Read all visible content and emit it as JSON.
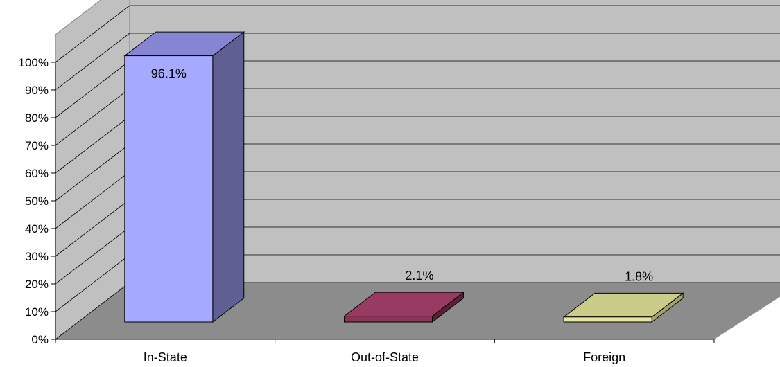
{
  "chart_data": {
    "type": "bar",
    "title": "",
    "xlabel": "",
    "ylabel": "",
    "categories": [
      "In-State",
      "Out-of-State",
      "Foreign"
    ],
    "values": [
      96.1,
      2.1,
      1.8
    ],
    "data_labels": [
      "96.1%",
      "2.1%",
      "1.8%"
    ],
    "ylim": [
      0,
      100
    ],
    "yticks": [
      0,
      10,
      20,
      30,
      40,
      50,
      60,
      70,
      80,
      90,
      100
    ],
    "ytick_labels": [
      "0%",
      "10%",
      "20%",
      "30%",
      "40%",
      "50%",
      "60%",
      "70%",
      "80%",
      "90%",
      "100%"
    ],
    "grid": true,
    "legend": "none",
    "style": "3d-column",
    "colors": {
      "bars": [
        "#a6aaff",
        "#8b3358",
        "#e5e5a0"
      ],
      "bar_sides": [
        "#5f5f94",
        "#5a2038",
        "#a3a36c"
      ],
      "bar_tops": [
        "#8585d4",
        "#993a62",
        "#cccc8a"
      ],
      "back_wall": "#c0c0c0",
      "side_wall": "#c0c0c0",
      "floor": "#8c8c8c",
      "gridline": "#000000"
    }
  }
}
